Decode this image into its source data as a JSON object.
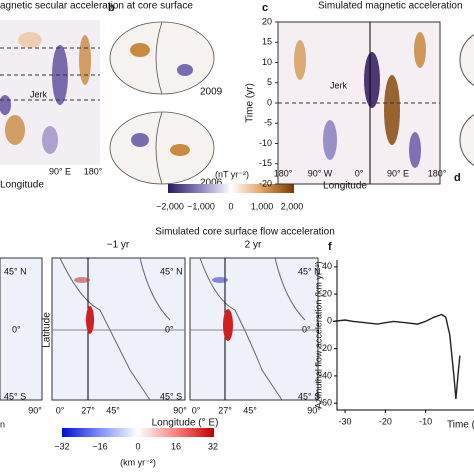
{
  "panel_a": {
    "title": "agnetic secular acceleration at core surface",
    "annotation": "Jerk",
    "xlabel": "Longitude",
    "xticks": [
      "90° E",
      "180°"
    ]
  },
  "panel_b": {
    "label": "b",
    "years": [
      "2009",
      "2006"
    ]
  },
  "panel_c": {
    "label": "c",
    "title": "Simulated magnetic acceleration",
    "ylabel": "Time (yr)",
    "ylim": [
      -20,
      20
    ],
    "yticks": [
      20,
      15,
      10,
      5,
      0,
      -5,
      -10,
      -15,
      -20
    ],
    "xticks": [
      "180°",
      "90° W",
      "0°",
      "90° E",
      "180°"
    ],
    "xlabel": "Longitude",
    "annotation": "Jerk"
  },
  "panel_d": {
    "label": "d"
  },
  "colorbar_top": {
    "unit": "(nT yr⁻²)",
    "ticks": [
      "−2,000",
      "−1,000",
      "0",
      "1,000",
      "2,000"
    ]
  },
  "bottom": {
    "title": "Simulated core surface flow acceleration",
    "partial_label": "n",
    "ylabel": "Latitude",
    "xlabel": "Longitude (° E)",
    "maps": [
      {
        "lat": [
          "45° N",
          "0°",
          "45° S"
        ],
        "xticks": [
          "90°"
        ]
      },
      {
        "time": "−1 yr",
        "lat": [
          "45° N",
          "0°",
          "45° S"
        ],
        "xticks": [
          "0°",
          "27°",
          "45°",
          "90°"
        ]
      },
      {
        "time": "2 yr",
        "lat": [
          "45° N",
          "0°",
          "45° S"
        ],
        "xticks": [
          "0°",
          "27°",
          "45°",
          "90°"
        ]
      }
    ]
  },
  "colorbar_bottom": {
    "unit": "(km yr⁻²)",
    "ticks": [
      "−32",
      "−16",
      "0",
      "16",
      "32"
    ]
  },
  "chart_data": {
    "type": "line",
    "label": "f",
    "ylabel": "Azimuthal flow acceleration (km yr⁻²)",
    "xlabel": "Time (y",
    "x": [
      -33,
      -30,
      -28,
      -25,
      -22,
      -20,
      -18,
      -15,
      -12,
      -10,
      -8,
      -6,
      -5,
      -4,
      -3,
      -2.5,
      -2,
      -1.5
    ],
    "series": [
      {
        "color": "#222222",
        "values": [
          0,
          1,
          0,
          -1,
          -2,
          -1,
          0,
          -1,
          -2,
          0,
          3,
          5,
          3,
          -10,
          -40,
          -57,
          -40,
          -25
        ]
      }
    ],
    "xlim": [
      -32,
      2
    ],
    "ylim": [
      -65,
      45
    ],
    "xticks": [
      -30,
      -20,
      -10
    ],
    "yticks": [
      40,
      20,
      0,
      -20,
      -40,
      -60
    ]
  }
}
